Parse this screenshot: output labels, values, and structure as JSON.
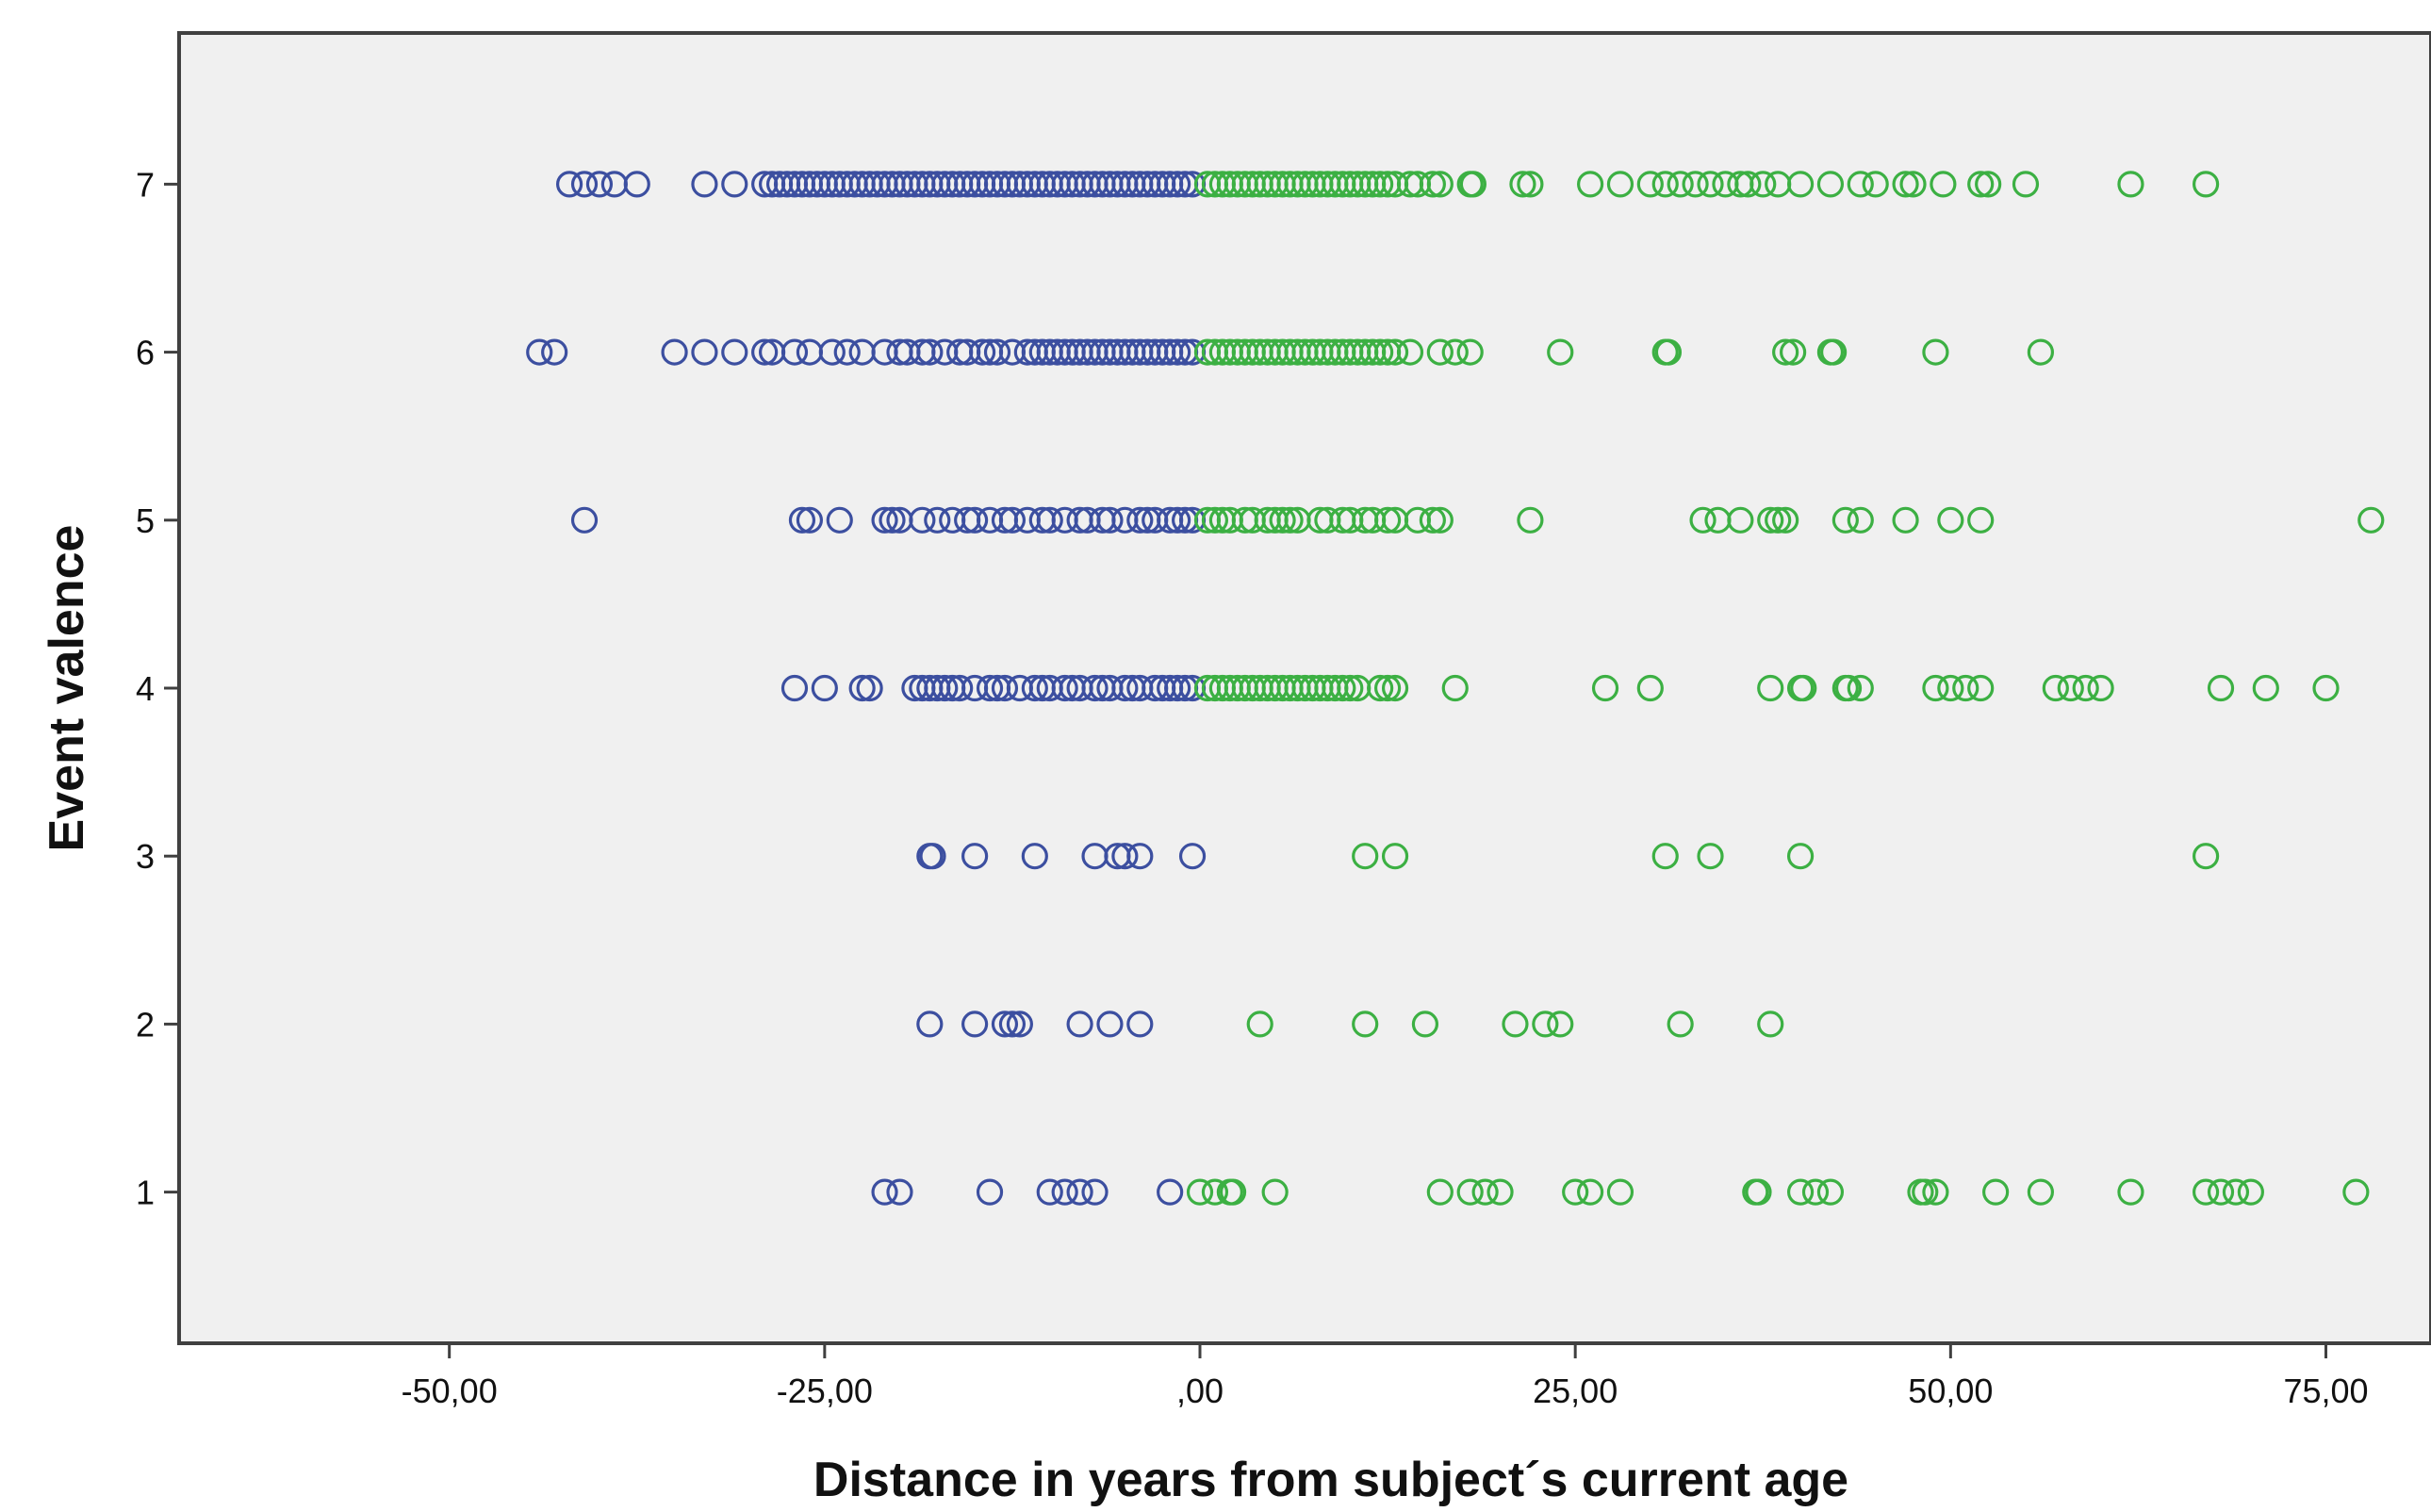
{
  "chart_data": {
    "type": "scatter",
    "title": "",
    "xlabel": "Distance in years from subject´s current age",
    "ylabel": "Event valence",
    "xlim": [
      -68,
      82
    ],
    "ylim": [
      0.1,
      7.9
    ],
    "x_ticks": [
      {
        "value": -50,
        "label": "-50,00"
      },
      {
        "value": -25,
        "label": "-25,00"
      },
      {
        "value": 0,
        "label": ",00"
      },
      {
        "value": 25,
        "label": "25,00"
      },
      {
        "value": 50,
        "label": "50,00"
      },
      {
        "value": 75,
        "label": "75,00"
      }
    ],
    "y_ticks": [
      {
        "value": 1,
        "label": "1"
      },
      {
        "value": 2,
        "label": "2"
      },
      {
        "value": 3,
        "label": "3"
      },
      {
        "value": 4,
        "label": "4"
      },
      {
        "value": 5,
        "label": "5"
      },
      {
        "value": 6,
        "label": "6"
      },
      {
        "value": 7,
        "label": "7"
      }
    ],
    "grid": false,
    "legend": "none",
    "colors": {
      "past": "#3c4fa0",
      "future": "#3cb043",
      "plot_background": "#f0f0f0",
      "frame": "#404040"
    },
    "series": [
      {
        "color": "#3c4fa0",
        "points": [
          {
            "y": 7,
            "x": [
              -42,
              -41,
              -40,
              -39,
              -37.5,
              -33,
              -31,
              -29,
              -28.5,
              -28,
              -27.5,
              -27,
              -26.5,
              -26,
              -25.5,
              -25,
              -24.5,
              -24,
              -23.5,
              -23,
              -22.5,
              -22,
              -21.5,
              -21,
              -20.5,
              -20,
              -19.5,
              -19,
              -18.5,
              -18,
              -17.5,
              -17,
              -16.5,
              -16,
              -15.5,
              -15,
              -14.5,
              -14,
              -13.5,
              -13,
              -12.5,
              -12,
              -11.5,
              -11,
              -10.5,
              -10,
              -9.5,
              -9,
              -8.5,
              -8,
              -7.5,
              -7,
              -6.5,
              -6,
              -5.5,
              -5,
              -4.5,
              -4,
              -3.5,
              -3,
              -2.5,
              -2,
              -1.5,
              -1,
              -0.5
            ]
          },
          {
            "y": 6,
            "x": [
              -44,
              -43,
              -35,
              -33,
              -31,
              -29,
              -28.5,
              -27,
              -26,
              -24.5,
              -23.5,
              -22.5,
              -21,
              -20,
              -19.5,
              -18.5,
              -18,
              -17,
              -16,
              -15.5,
              -14.5,
              -14,
              -13.5,
              -12.5,
              -11.5,
              -11,
              -10.5,
              -10,
              -9.5,
              -9,
              -8.5,
              -8,
              -7.5,
              -7,
              -6.5,
              -6,
              -5.5,
              -5,
              -4.5,
              -4,
              -3.5,
              -3,
              -2.5,
              -2,
              -1.5,
              -1,
              -0.5
            ]
          },
          {
            "y": 5,
            "x": [
              -41,
              -26.5,
              -26,
              -24,
              -21,
              -20.5,
              -20,
              -18.5,
              -17.5,
              -16.5,
              -15.5,
              -15,
              -14,
              -13,
              -12.5,
              -11.5,
              -10.5,
              -10,
              -9,
              -8,
              -7.5,
              -6.5,
              -6,
              -5,
              -4,
              -3.5,
              -3,
              -2,
              -1.5,
              -1,
              -0.5
            ]
          },
          {
            "y": 4,
            "x": [
              -27,
              -25,
              -22.5,
              -22,
              -19,
              -18.5,
              -18,
              -17.5,
              -17,
              -16.5,
              -16,
              -15,
              -14,
              -13.5,
              -13,
              -12,
              -11,
              -10.5,
              -10,
              -9,
              -8.5,
              -8,
              -7,
              -6.5,
              -6,
              -5,
              -4.5,
              -4,
              -3,
              -2.5,
              -2,
              -1.5,
              -1,
              -0.5
            ]
          },
          {
            "y": 3,
            "x": [
              -18,
              -17.8,
              -15,
              -11,
              -7,
              -5.5,
              -5,
              -4,
              -0.5
            ]
          },
          {
            "y": 2,
            "x": [
              -18,
              -15,
              -13,
              -12.5,
              -12,
              -8,
              -6,
              -4
            ]
          },
          {
            "y": 1,
            "x": [
              -21,
              -20,
              -14,
              -10,
              -9,
              -8,
              -7,
              -2
            ]
          }
        ]
      },
      {
        "color": "#3cb043",
        "points": [
          {
            "y": 7,
            "x": [
              0.5,
              1,
              1.5,
              2,
              2.5,
              3,
              3.5,
              4,
              4.5,
              5,
              5.5,
              6,
              6.5,
              7,
              7.5,
              8,
              8.5,
              9,
              9.5,
              10,
              10.5,
              11,
              11.5,
              12,
              12.5,
              13,
              14,
              14.5,
              15.5,
              16,
              18,
              18.2,
              21.5,
              22,
              26,
              28,
              30,
              31,
              32,
              33,
              34,
              35,
              36,
              36.5,
              37.5,
              38.5,
              40,
              42,
              44,
              45,
              47,
              47.5,
              49.5,
              52,
              52.5,
              55,
              62,
              67
            ]
          },
          {
            "y": 6,
            "x": [
              0.5,
              1,
              1.5,
              2,
              2.5,
              3,
              3.5,
              4,
              4.5,
              5,
              5.5,
              6,
              6.5,
              7,
              7.5,
              8,
              8.5,
              9,
              9.5,
              10,
              10.5,
              11,
              11.5,
              12,
              12.5,
              13,
              14,
              16,
              17,
              18,
              24,
              31,
              31.2,
              39,
              39.5,
              42,
              42.2,
              49,
              56
            ]
          },
          {
            "y": 5,
            "x": [
              0.5,
              1,
              1.5,
              2,
              3,
              3.5,
              4.5,
              5,
              5.5,
              6,
              6.5,
              8,
              8.5,
              9.5,
              10,
              11,
              11.5,
              12.5,
              13,
              14.5,
              15.5,
              16,
              22,
              33.5,
              34.5,
              36,
              38,
              38.5,
              39,
              43,
              44,
              47,
              50,
              52,
              78
            ]
          },
          {
            "y": 4,
            "x": [
              0.5,
              1,
              1.5,
              2,
              2.5,
              3,
              3.5,
              4,
              4.5,
              5,
              5.5,
              6,
              6.5,
              7,
              7.5,
              8,
              8.5,
              9,
              9.5,
              10,
              10.5,
              12,
              12.5,
              13,
              17,
              27,
              30,
              38,
              40,
              40.2,
              43,
              43.2,
              44,
              49,
              50,
              51,
              52,
              57,
              58,
              59,
              60,
              68,
              71,
              75
            ]
          },
          {
            "y": 3,
            "x": [
              11,
              13,
              31,
              34,
              40,
              67
            ]
          },
          {
            "y": 2,
            "x": [
              4,
              11,
              15,
              21,
              23,
              24,
              32,
              38
            ]
          },
          {
            "y": 1,
            "x": [
              0,
              1,
              2,
              2.2,
              5,
              16,
              18,
              19,
              20,
              25,
              26,
              28,
              37,
              37.2,
              40,
              41,
              42,
              48,
              48.3,
              49,
              53,
              56,
              62,
              67,
              68,
              69,
              70,
              77
            ]
          }
        ]
      }
    ]
  }
}
